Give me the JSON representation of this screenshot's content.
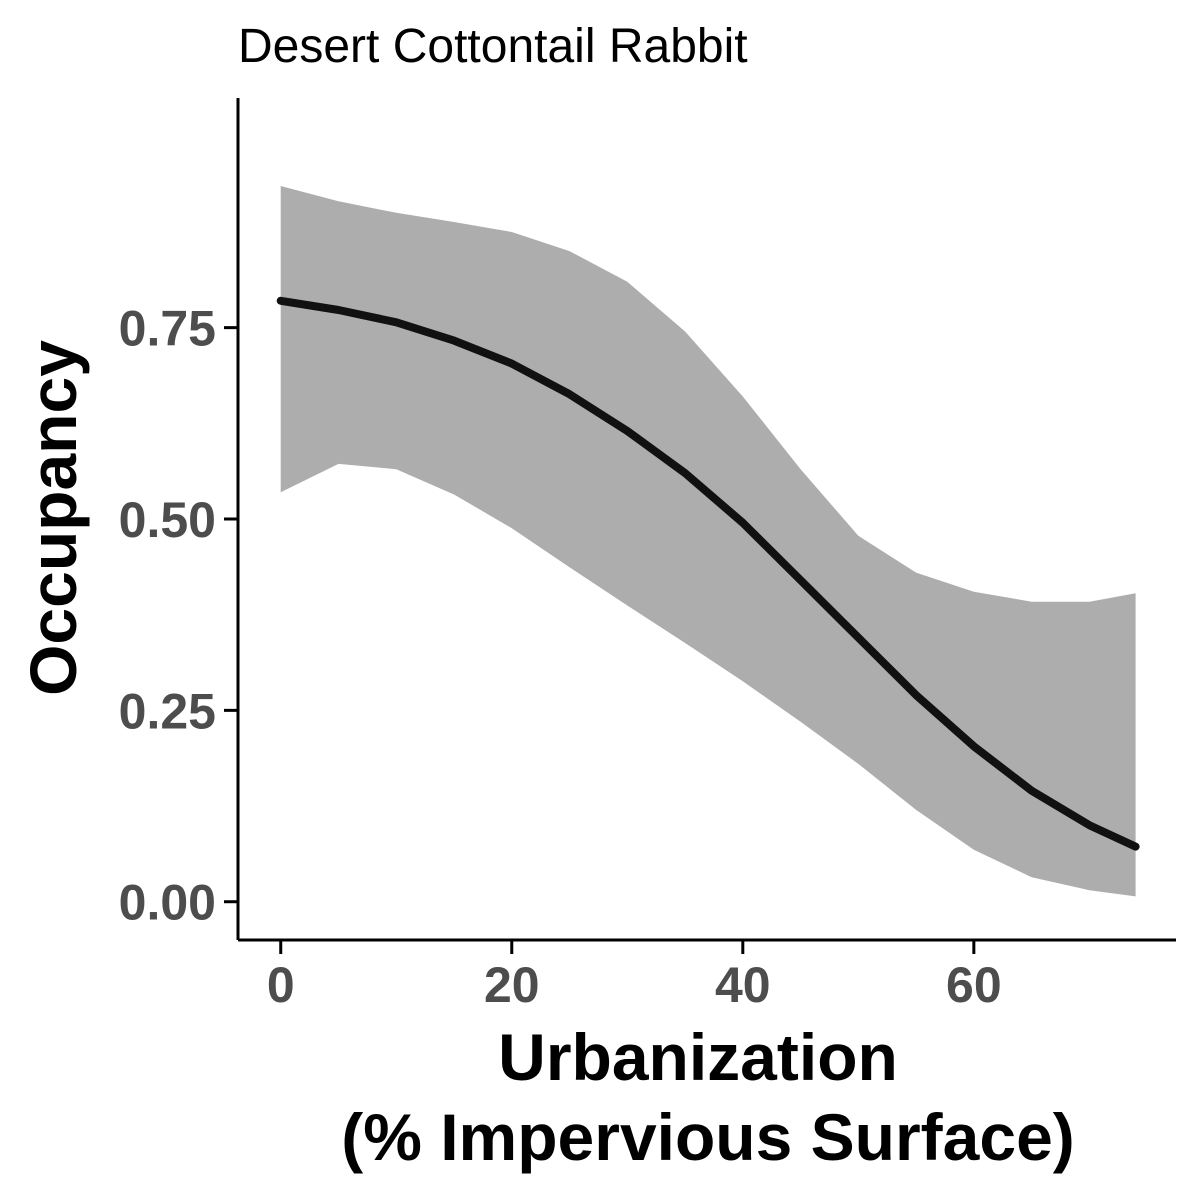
{
  "chart_data": {
    "type": "line",
    "title": "Desert Cottontail Rabbit",
    "xlabel_lines": [
      "Urbanization",
      "(% Impervious Surface)"
    ],
    "ylabel": "Occupancy",
    "xlim": [
      -3.7,
      77.5
    ],
    "ylim": [
      -0.05,
      1.05
    ],
    "x_ticks": [
      0,
      20,
      40,
      60
    ],
    "x_tick_labels": [
      "0",
      "20",
      "40",
      "60"
    ],
    "y_ticks": [
      0,
      0.25,
      0.5,
      0.75
    ],
    "y_tick_labels": [
      "0.00",
      "0.25",
      "0.50",
      "0.75"
    ],
    "grid": false,
    "legend": "none",
    "x": [
      0,
      5,
      10,
      15,
      20,
      25,
      30,
      35,
      40,
      45,
      50,
      55,
      60,
      65,
      70,
      74
    ],
    "series": [
      {
        "values": [
          0.785,
          0.773,
          0.757,
          0.733,
          0.703,
          0.663,
          0.615,
          0.56,
          0.495,
          0.42,
          0.345,
          0.27,
          0.203,
          0.145,
          0.1,
          0.072
        ]
      }
    ],
    "ribbon": {
      "upper": [
        0.935,
        0.915,
        0.9,
        0.888,
        0.875,
        0.85,
        0.81,
        0.745,
        0.66,
        0.565,
        0.478,
        0.43,
        0.405,
        0.392,
        0.392,
        0.403
      ],
      "lower": [
        0.535,
        0.572,
        0.565,
        0.532,
        0.488,
        0.437,
        0.387,
        0.338,
        0.288,
        0.235,
        0.18,
        0.12,
        0.068,
        0.032,
        0.015,
        0.007
      ]
    },
    "colors": {
      "line": "#111111",
      "ribbon": "#adadad",
      "axis": "#000000",
      "tick_label": "#4d4d4d"
    }
  }
}
